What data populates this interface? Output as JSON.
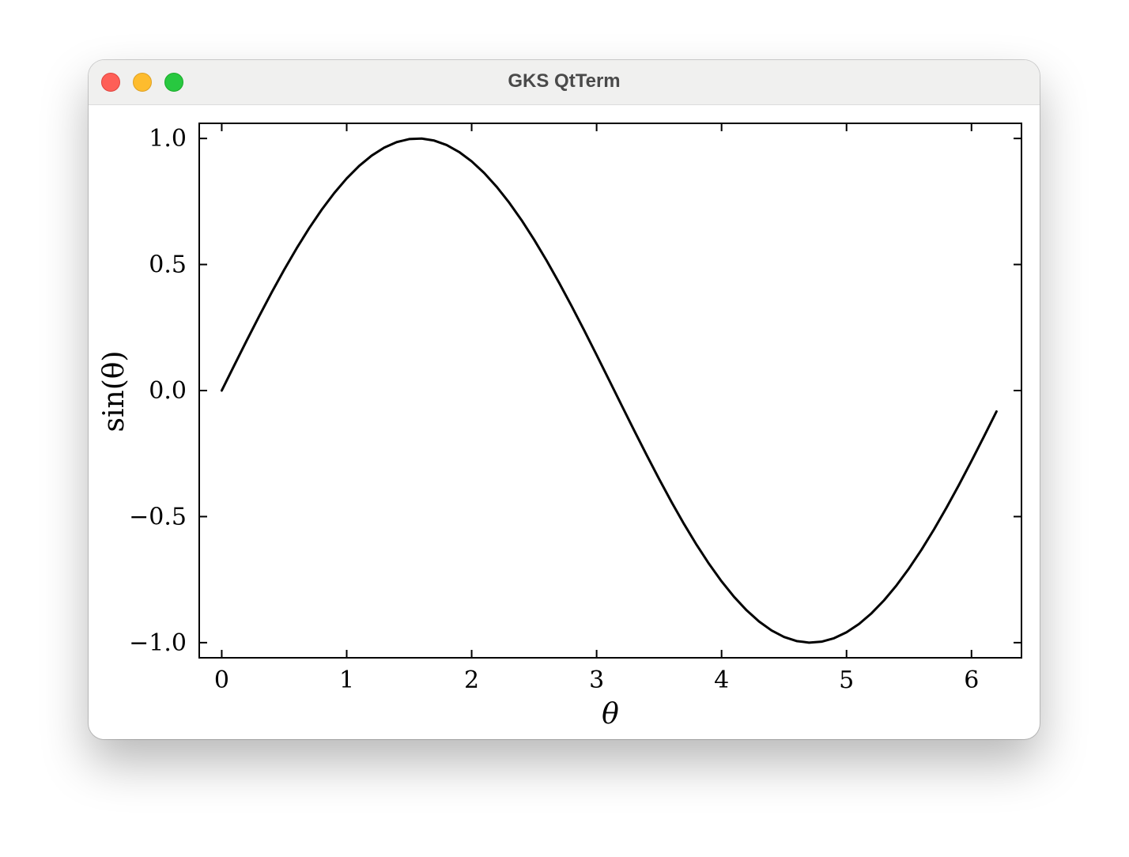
{
  "window": {
    "title": "GKS QtTerm",
    "controls": [
      "close",
      "minimize",
      "zoom"
    ]
  },
  "chart_data": {
    "type": "line",
    "function": "sin",
    "xlabel": "θ",
    "ylabel": "sin(θ)",
    "xlim": [
      -0.18,
      6.4
    ],
    "ylim": [
      -1.06,
      1.06
    ],
    "xticks": [
      0,
      1,
      2,
      3,
      4,
      5,
      6
    ],
    "xtick_labels": [
      "0",
      "1",
      "2",
      "3",
      "4",
      "5",
      "6"
    ],
    "yticks": [
      -1.0,
      -0.5,
      0.0,
      0.5,
      1.0
    ],
    "ytick_labels": [
      "−1.0",
      "−0.5",
      "0.0",
      "0.5",
      "1.0"
    ],
    "x_start": 0,
    "x_end": 6.2,
    "x_step": 0.1,
    "line_color": "#000000",
    "grid": false
  }
}
